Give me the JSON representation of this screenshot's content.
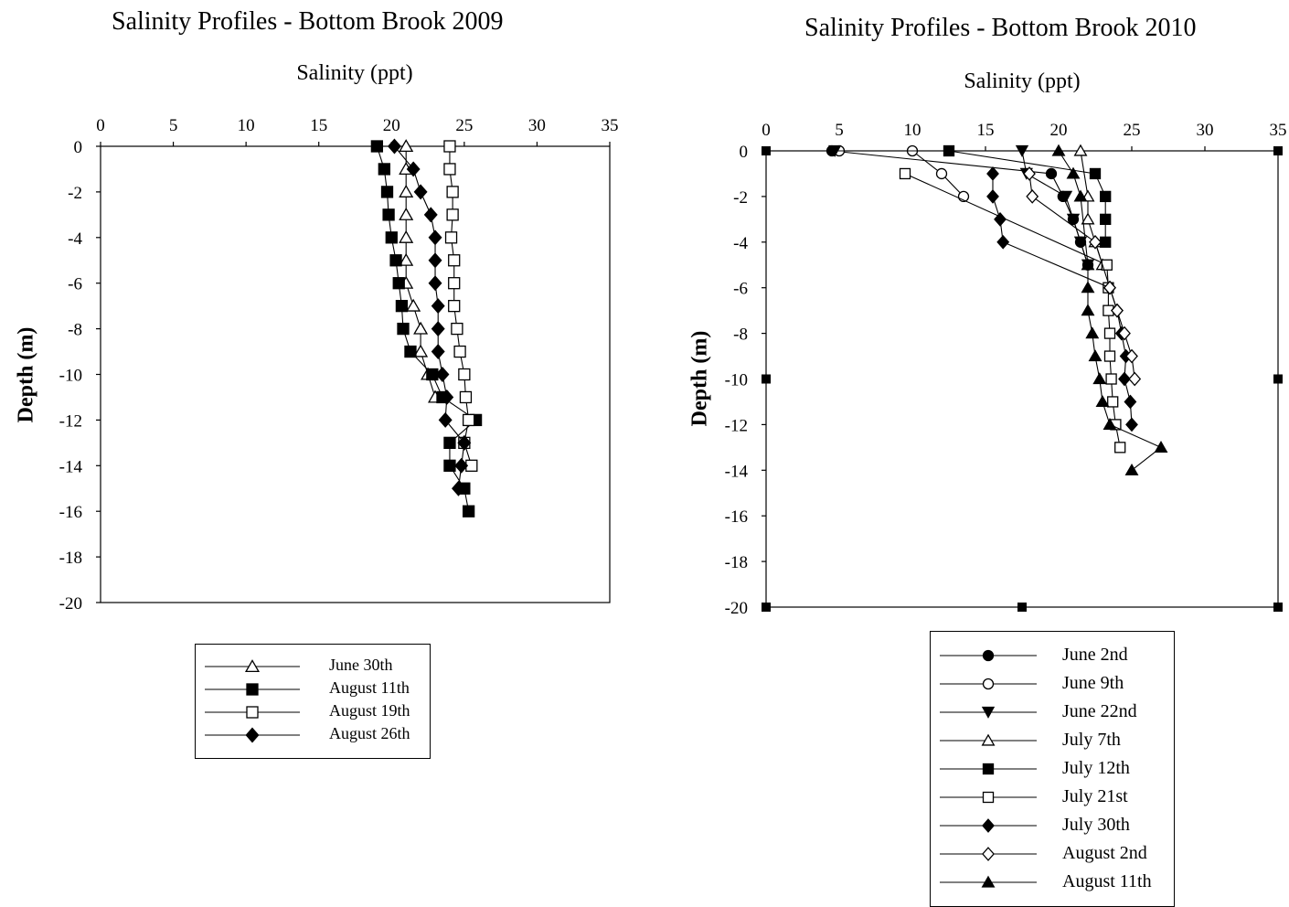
{
  "chart_data": [
    {
      "type": "scatter",
      "title": "Salinity Profiles - Bottom Brook 2009",
      "xlabel": "Salinity (ppt)",
      "ylabel": "Depth (m)",
      "xlim": [
        0,
        35
      ],
      "ylim": [
        -20,
        0
      ],
      "x_ticks": [
        "0",
        "5",
        "10",
        "15",
        "20",
        "25",
        "30",
        "35"
      ],
      "y_ticks": [
        "0",
        "-2",
        "-4",
        "-6",
        "-8",
        "-10",
        "-12",
        "-14",
        "-16",
        "-18",
        "-20"
      ],
      "x_axis_position": "top",
      "legend_position": "bottom",
      "series": [
        {
          "name": "June 30th",
          "marker": "triangle-open",
          "points": [
            [
              21,
              0
            ],
            [
              21,
              -1
            ],
            [
              21,
              -2
            ],
            [
              21,
              -3
            ],
            [
              21,
              -4
            ],
            [
              21,
              -5
            ],
            [
              21,
              -6
            ],
            [
              21.5,
              -7
            ],
            [
              22,
              -8
            ],
            [
              22,
              -9
            ],
            [
              22.5,
              -10
            ],
            [
              23,
              -11
            ]
          ]
        },
        {
          "name": "August 11th",
          "marker": "square-filled",
          "points": [
            [
              19,
              0
            ],
            [
              19.5,
              -1
            ],
            [
              19.7,
              -2
            ],
            [
              19.8,
              -3
            ],
            [
              20,
              -4
            ],
            [
              20.3,
              -5
            ],
            [
              20.5,
              -6
            ],
            [
              20.7,
              -7
            ],
            [
              20.8,
              -8
            ],
            [
              21.3,
              -9
            ],
            [
              22.8,
              -10
            ],
            [
              23.5,
              -11
            ],
            [
              25.8,
              -12
            ],
            [
              24,
              -13
            ],
            [
              24,
              -14
            ],
            [
              25,
              -15
            ],
            [
              25.3,
              -16
            ]
          ]
        },
        {
          "name": "August 19th",
          "marker": "square-open",
          "points": [
            [
              24,
              0
            ],
            [
              24,
              -1
            ],
            [
              24.2,
              -2
            ],
            [
              24.2,
              -3
            ],
            [
              24.1,
              -4
            ],
            [
              24.3,
              -5
            ],
            [
              24.3,
              -6
            ],
            [
              24.3,
              -7
            ],
            [
              24.5,
              -8
            ],
            [
              24.7,
              -9
            ],
            [
              25,
              -10
            ],
            [
              25.1,
              -11
            ],
            [
              25.3,
              -12
            ],
            [
              25,
              -13
            ],
            [
              25.5,
              -14
            ]
          ]
        },
        {
          "name": "August 26th",
          "marker": "diamond-filled",
          "points": [
            [
              20.2,
              0
            ],
            [
              21.5,
              -1
            ],
            [
              22,
              -2
            ],
            [
              22.7,
              -3
            ],
            [
              23,
              -4
            ],
            [
              23,
              -5
            ],
            [
              23,
              -6
            ],
            [
              23.2,
              -7
            ],
            [
              23.2,
              -8
            ],
            [
              23.2,
              -9
            ],
            [
              23.5,
              -10
            ],
            [
              23.8,
              -11
            ],
            [
              23.7,
              -12
            ],
            [
              25,
              -13
            ],
            [
              24.8,
              -14
            ],
            [
              24.6,
              -15
            ]
          ]
        }
      ]
    },
    {
      "type": "scatter",
      "title": "Salinity Profiles - Bottom Brook 2010",
      "xlabel": "Salinity (ppt)",
      "ylabel": "Depth (m)",
      "xlim": [
        0,
        35
      ],
      "ylim": [
        -20,
        0
      ],
      "x_ticks": [
        "0",
        "5",
        "10",
        "15",
        "20",
        "25",
        "30",
        "35"
      ],
      "y_ticks": [
        "0",
        "-2",
        "-4",
        "-6",
        "-8",
        "-10",
        "-12",
        "-14",
        "-16",
        "-18",
        "-20"
      ],
      "x_axis_position": "top",
      "legend_position": "bottom",
      "series": [
        {
          "name": "June 2nd",
          "marker": "circle-filled",
          "points": [
            [
              4.5,
              0
            ],
            [
              19.5,
              -1
            ],
            [
              20.3,
              -2
            ],
            [
              21,
              -3
            ],
            [
              21.5,
              -4
            ],
            [
              22,
              -5
            ]
          ]
        },
        {
          "name": "June 9th",
          "marker": "circle-open",
          "points": [
            [
              5,
              0
            ],
            [
              10,
              0
            ],
            [
              12,
              -1
            ],
            [
              13.5,
              -2
            ]
          ]
        },
        {
          "name": "June 22nd",
          "marker": "triangle-down-filled",
          "points": [
            [
              4.7,
              0
            ],
            [
              17.5,
              0
            ],
            [
              17.8,
              -1
            ],
            [
              20.5,
              -2
            ],
            [
              21,
              -3
            ],
            [
              21.5,
              -4
            ],
            [
              22,
              -5
            ]
          ]
        },
        {
          "name": "July 7th",
          "marker": "triangle-open",
          "points": [
            [
              21.5,
              0
            ],
            [
              22,
              -2
            ],
            [
              22,
              -3
            ],
            [
              22.5,
              -4
            ],
            [
              23,
              -5
            ]
          ]
        },
        {
          "name": "July 12th",
          "marker": "square-filled",
          "points": [
            [
              12.5,
              0
            ],
            [
              22.5,
              -1
            ],
            [
              23.2,
              -2
            ],
            [
              23.2,
              -3
            ],
            [
              23.2,
              -4
            ]
          ]
        },
        {
          "name": "July 21st",
          "marker": "square-open",
          "points": [
            [
              9.5,
              -1
            ],
            [
              23.3,
              -5
            ],
            [
              23.4,
              -6
            ],
            [
              23.4,
              -7
            ],
            [
              23.5,
              -8
            ],
            [
              23.5,
              -9
            ],
            [
              23.6,
              -10
            ],
            [
              23.7,
              -11
            ],
            [
              23.9,
              -12
            ],
            [
              24.2,
              -13
            ]
          ]
        },
        {
          "name": "July 30th",
          "marker": "diamond-filled",
          "points": [
            [
              15.5,
              -1
            ],
            [
              15.5,
              -2
            ],
            [
              16,
              -3
            ],
            [
              16.2,
              -4
            ],
            [
              23.5,
              -6
            ],
            [
              24,
              -7
            ],
            [
              24.3,
              -8
            ],
            [
              24.6,
              -9
            ],
            [
              24.5,
              -10
            ],
            [
              24.9,
              -11
            ],
            [
              25,
              -12
            ]
          ]
        },
        {
          "name": "August 2nd",
          "marker": "diamond-open",
          "points": [
            [
              18,
              -1
            ],
            [
              18.2,
              -2
            ],
            [
              22.5,
              -4
            ],
            [
              23.5,
              -6
            ],
            [
              24,
              -7
            ],
            [
              24.5,
              -8
            ],
            [
              25,
              -9
            ],
            [
              25.2,
              -10
            ]
          ]
        },
        {
          "name": "August 11th",
          "marker": "triangle-filled",
          "points": [
            [
              20,
              0
            ],
            [
              21,
              -1
            ],
            [
              21.5,
              -2
            ],
            [
              22,
              -5
            ],
            [
              22,
              -6
            ],
            [
              22,
              -7
            ],
            [
              22.3,
              -8
            ],
            [
              22.5,
              -9
            ],
            [
              22.8,
              -10
            ],
            [
              23,
              -11
            ],
            [
              23.5,
              -12
            ],
            [
              27,
              -13
            ],
            [
              25,
              -14
            ]
          ]
        }
      ]
    }
  ]
}
